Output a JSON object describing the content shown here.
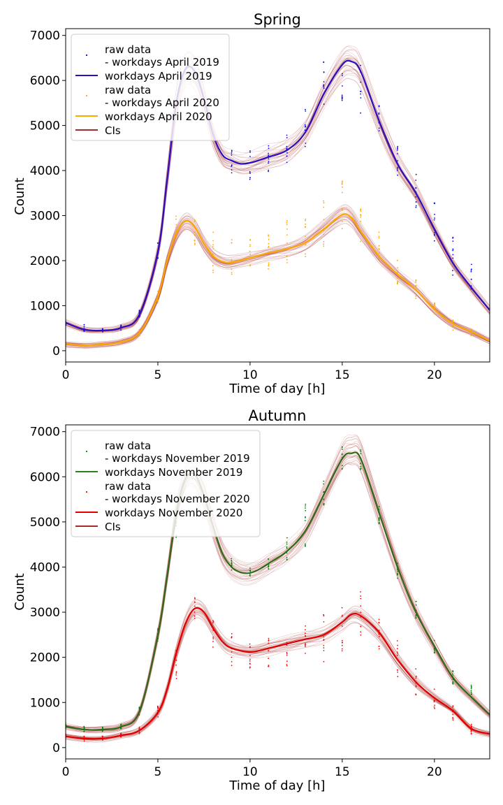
{
  "chart_data": [
    {
      "type": "line",
      "title": "Spring",
      "xlabel": "Time of day [h]",
      "ylabel": "Count",
      "xlim": [
        0,
        23
      ],
      "ylim": [
        -250,
        7150
      ],
      "xticks": [
        0,
        5,
        10,
        15,
        20
      ],
      "yticks": [
        0,
        1000,
        2000,
        3000,
        4000,
        5000,
        6000,
        7000
      ],
      "grid": false,
      "legend_position": "upper-left",
      "legend": [
        {
          "label": "raw data\n- workdays April 2019",
          "kind": "points",
          "color": "#0000ff"
        },
        {
          "label": "workdays April 2019",
          "kind": "line",
          "color": "#2a0fbf"
        },
        {
          "label": "raw data\n- workdays April 2020",
          "kind": "points",
          "color": "#ffa500"
        },
        {
          "label": "workdays April 2020",
          "kind": "line",
          "color": "#ffa500"
        },
        {
          "label": "CIs",
          "kind": "line",
          "color": "#a52a2a"
        }
      ],
      "ci_color": "#a52a2a",
      "series": [
        {
          "name": "workdays April 2019",
          "color": "#2a0fbf",
          "raw_color": "#0000ff",
          "x": [
            0,
            1,
            2,
            3,
            4,
            5,
            5.5,
            6,
            6.5,
            7,
            7.5,
            8,
            8.5,
            9,
            9.5,
            10,
            10.5,
            11,
            12,
            13,
            14,
            15,
            15.5,
            16,
            17,
            18,
            19,
            20,
            21,
            22,
            23
          ],
          "y": [
            620,
            470,
            450,
            510,
            800,
            2200,
            3800,
            5500,
            6250,
            6200,
            5600,
            4800,
            4350,
            4220,
            4150,
            4170,
            4230,
            4300,
            4450,
            4850,
            5700,
            6350,
            6420,
            6200,
            5100,
            4150,
            3500,
            2700,
            1950,
            1400,
            900
          ],
          "raw_x": [
            0,
            1,
            2,
            3,
            4,
            5,
            9,
            10,
            11,
            12,
            13,
            14,
            15,
            16,
            17,
            18,
            19,
            20,
            21,
            22
          ],
          "raw_y": [
            [
              560,
              680
            ],
            [
              430,
              580
            ],
            [
              410,
              500
            ],
            [
              460,
              580
            ],
            [
              730,
              900
            ],
            [
              2050,
              2450
            ],
            [
              3900,
              4550
            ],
            [
              3780,
              4500
            ],
            [
              3950,
              4720
            ],
            [
              4180,
              4900
            ],
            [
              4500,
              5400
            ],
            [
              5150,
              6450
            ],
            [
              5550,
              6800
            ],
            [
              5200,
              6550
            ],
            [
              4850,
              5450
            ],
            [
              3800,
              4600
            ],
            [
              3150,
              3950
            ],
            [
              2400,
              3300
            ],
            [
              1600,
              2600
            ],
            [
              1150,
              2000
            ]
          ]
        },
        {
          "name": "workdays April 2020",
          "color": "#ffa500",
          "raw_color": "#ffa500",
          "x": [
            0,
            1,
            2,
            3,
            4,
            5,
            5.5,
            6,
            6.5,
            7,
            7.5,
            8,
            8.5,
            9,
            10,
            11,
            12,
            13,
            14,
            15,
            15.5,
            16,
            17,
            18,
            19,
            20,
            21,
            22,
            23
          ],
          "y": [
            150,
            120,
            140,
            190,
            400,
            1200,
            2000,
            2600,
            2880,
            2750,
            2380,
            2100,
            1980,
            1960,
            2060,
            2170,
            2260,
            2400,
            2700,
            3020,
            2950,
            2650,
            2100,
            1700,
            1350,
            920,
            600,
            420,
            220
          ],
          "raw_x": [
            0,
            1,
            2,
            3,
            4,
            5,
            6,
            7,
            8,
            9,
            10,
            11,
            12,
            13,
            14,
            15,
            16,
            17,
            18,
            19,
            20,
            21,
            22
          ],
          "raw_y": [
            [
              110,
              180
            ],
            [
              90,
              160
            ],
            [
              110,
              170
            ],
            [
              150,
              230
            ],
            [
              320,
              470
            ],
            [
              1050,
              1350
            ],
            [
              2400,
              3000
            ],
            [
              2350,
              2950
            ],
            [
              1700,
              2650
            ],
            [
              1650,
              2550
            ],
            [
              1750,
              2500
            ],
            [
              1800,
              2600
            ],
            [
              1900,
              2900
            ],
            [
              2050,
              3050
            ],
            [
              2300,
              3450
            ],
            [
              2600,
              3800
            ],
            [
              2350,
              3250
            ],
            [
              1950,
              2650
            ],
            [
              1450,
              2050
            ],
            [
              1150,
              1600
            ],
            [
              800,
              1150
            ],
            [
              450,
              700
            ],
            [
              330,
              480
            ]
          ]
        }
      ]
    },
    {
      "type": "line",
      "title": "Autumn",
      "xlabel": "Time of day [h]",
      "ylabel": "Count",
      "xlim": [
        0,
        23
      ],
      "ylim": [
        -250,
        7150
      ],
      "xticks": [
        0,
        5,
        10,
        15,
        20
      ],
      "yticks": [
        0,
        1000,
        2000,
        3000,
        4000,
        5000,
        6000,
        7000
      ],
      "grid": false,
      "legend_position": "upper-left",
      "legend": [
        {
          "label": "raw data\n- workdays November 2019",
          "kind": "points",
          "color": "#008000"
        },
        {
          "label": "workdays November 2019",
          "kind": "line",
          "color": "#2e7d1e"
        },
        {
          "label": "raw data\n- workdays November 2020",
          "kind": "points",
          "color": "#ff0000"
        },
        {
          "label": "workdays November 2020",
          "kind": "line",
          "color": "#e00000"
        },
        {
          "label": "CIs",
          "kind": "line",
          "color": "#a52a2a"
        }
      ],
      "ci_color": "#a52a2a",
      "series": [
        {
          "name": "workdays November 2019",
          "color": "#2e6a17",
          "raw_color": "#008000",
          "x": [
            0,
            1,
            2,
            3,
            4,
            5,
            5.5,
            6,
            6.5,
            7,
            7.5,
            8,
            8.5,
            9,
            9.5,
            10,
            10.5,
            11,
            12,
            13,
            14,
            15,
            15.5,
            16,
            17,
            18,
            19,
            20,
            21,
            22,
            23
          ],
          "y": [
            470,
            400,
            400,
            460,
            800,
            2500,
            3800,
            5200,
            5950,
            6050,
            5600,
            4900,
            4300,
            4000,
            3880,
            3870,
            3950,
            4080,
            4350,
            4800,
            5600,
            6400,
            6520,
            6400,
            5200,
            4000,
            3000,
            2250,
            1550,
            1120,
            730
          ],
          "raw_x": [
            0,
            1,
            2,
            3,
            4,
            5,
            6,
            9,
            10,
            11,
            12,
            13,
            14,
            15,
            16,
            17,
            18,
            19,
            20,
            21,
            22
          ],
          "raw_y": [
            [
              420,
              560
            ],
            [
              350,
              470
            ],
            [
              360,
              450
            ],
            [
              410,
              550
            ],
            [
              720,
              900
            ],
            [
              2350,
              2650
            ],
            [
              4650,
              5200
            ],
            [
              3900,
              4200
            ],
            [
              3780,
              3980
            ],
            [
              3950,
              4200
            ],
            [
              4150,
              4650
            ],
            [
              4450,
              5400
            ],
            [
              5300,
              6000
            ],
            [
              6050,
              6750
            ],
            [
              6100,
              6650
            ],
            [
              4950,
              5350
            ],
            [
              3750,
              4150
            ],
            [
              2850,
              3250
            ],
            [
              2050,
              2500
            ],
            [
              1400,
              1700
            ],
            [
              1000,
              1400
            ]
          ]
        },
        {
          "name": "workdays November 2020",
          "color": "#e00000",
          "raw_color": "#ff0000",
          "x": [
            0,
            1,
            2,
            3,
            4,
            5,
            5.5,
            6,
            6.5,
            7,
            7.5,
            8,
            8.5,
            9,
            10,
            11,
            12,
            13,
            14,
            15,
            15.5,
            16,
            17,
            18,
            19,
            20,
            21,
            22,
            23
          ],
          "y": [
            250,
            200,
            200,
            270,
            380,
            780,
            1300,
            2100,
            2750,
            3080,
            3000,
            2650,
            2350,
            2200,
            2120,
            2200,
            2300,
            2400,
            2500,
            2780,
            2950,
            2920,
            2550,
            1950,
            1450,
            1100,
            820,
            420,
            300
          ],
          "raw_x": [
            0,
            1,
            2,
            3,
            4,
            5,
            6,
            7,
            8,
            9,
            10,
            11,
            12,
            13,
            14,
            15,
            16,
            17,
            18,
            19,
            20,
            21,
            22
          ],
          "raw_y": [
            [
              210,
              310
            ],
            [
              140,
              260
            ],
            [
              160,
              260
            ],
            [
              220,
              330
            ],
            [
              290,
              470
            ],
            [
              620,
              950
            ],
            [
              1500,
              2200
            ],
            [
              2850,
              3350
            ],
            [
              2200,
              3000
            ],
            [
              1750,
              2550
            ],
            [
              1680,
              2350
            ],
            [
              1780,
              2450
            ],
            [
              1680,
              2650
            ],
            [
              2000,
              2800
            ],
            [
              1900,
              2950
            ],
            [
              1980,
              3250
            ],
            [
              2450,
              3450
            ],
            [
              2150,
              2850
            ],
            [
              1550,
              2400
            ],
            [
              1150,
              1750
            ],
            [
              820,
              1400
            ],
            [
              580,
              950
            ],
            [
              300,
              520
            ]
          ]
        }
      ]
    }
  ]
}
